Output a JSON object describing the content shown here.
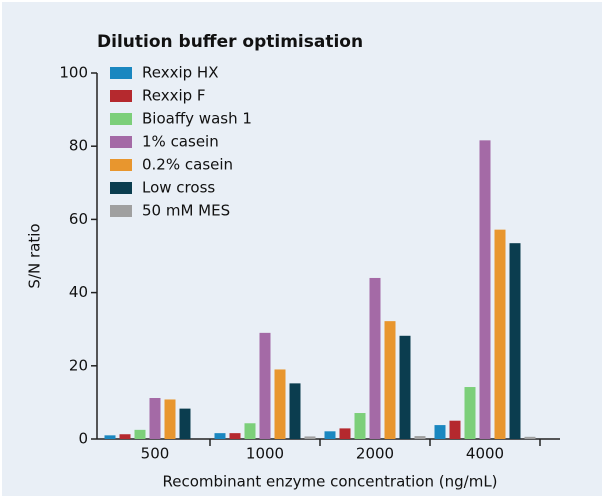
{
  "chart_data": {
    "type": "bar",
    "title": "Dilution buffer optimisation",
    "xlabel": "Recombinant enzyme concentration (ng/mL)",
    "ylabel": "S/N ratio",
    "categories": [
      "500",
      "1000",
      "2000",
      "4000"
    ],
    "series": [
      {
        "name": "Rexxip HX",
        "color": "#1a87c0",
        "values": [
          1,
          1.6,
          2.1,
          3.8
        ]
      },
      {
        "name": "Rexxip F",
        "color": "#b5292e",
        "values": [
          1.3,
          1.6,
          2.9,
          5
        ]
      },
      {
        "name": "Bioaffy wash 1",
        "color": "#7ccf7a",
        "values": [
          2.5,
          4.3,
          7.1,
          14.2
        ]
      },
      {
        "name": "1% casein",
        "color": "#a46aa6",
        "values": [
          11.2,
          29,
          44,
          81.6
        ]
      },
      {
        "name": "0.2% casein",
        "color": "#e8962e",
        "values": [
          10.8,
          19,
          32.2,
          57.2
        ]
      },
      {
        "name": "Low cross",
        "color": "#0b3d4f",
        "values": [
          8.3,
          15.2,
          28.2,
          53.5
        ]
      },
      {
        "name": "50 mM MES",
        "color": "#a0a0a0",
        "values": [
          0,
          0.7,
          0.8,
          0.6
        ]
      }
    ],
    "ylim": [
      0,
      100
    ],
    "yticks": [
      0,
      20,
      40,
      60,
      80,
      100
    ],
    "grid": false,
    "legend": "upper left"
  }
}
